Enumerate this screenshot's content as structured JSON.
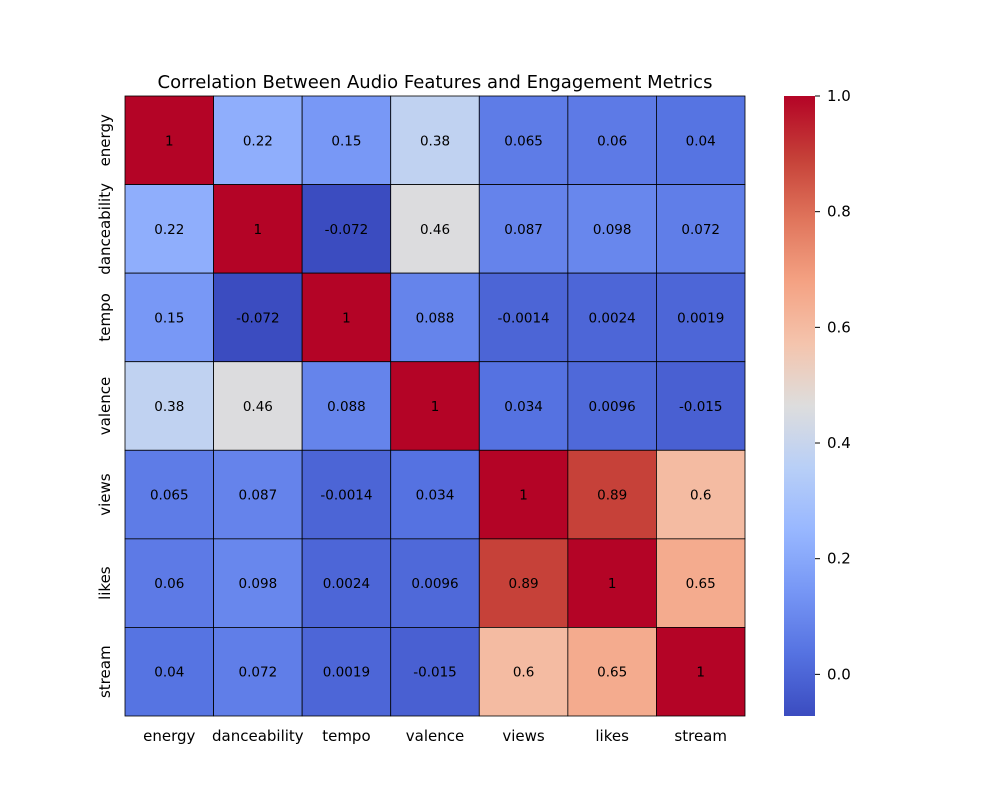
{
  "chart_data": {
    "type": "heatmap",
    "title": "Correlation Between Audio Features and Engagement Metrics",
    "x_labels": [
      "energy",
      "danceability",
      "tempo",
      "valence",
      "views",
      "likes",
      "stream"
    ],
    "y_labels": [
      "energy",
      "danceability",
      "tempo",
      "valence",
      "views",
      "likes",
      "stream"
    ],
    "values": [
      [
        1,
        0.22,
        0.15,
        0.38,
        0.065,
        0.06,
        0.04
      ],
      [
        0.22,
        1,
        -0.072,
        0.46,
        0.087,
        0.098,
        0.072
      ],
      [
        0.15,
        -0.072,
        1,
        0.088,
        -0.0014,
        0.0024,
        0.0019
      ],
      [
        0.38,
        0.46,
        0.088,
        1,
        0.034,
        0.0096,
        -0.015
      ],
      [
        0.065,
        0.087,
        -0.0014,
        0.034,
        1,
        0.89,
        0.6
      ],
      [
        0.06,
        0.098,
        0.0024,
        0.0096,
        0.89,
        1,
        0.65
      ],
      [
        0.04,
        0.072,
        0.0019,
        -0.015,
        0.6,
        0.65,
        1
      ]
    ],
    "colormap": "coolwarm",
    "vmin": -0.072,
    "vmax": 1.0,
    "colorbar_ticks": [
      "0.0",
      "0.2",
      "0.4",
      "0.6",
      "0.8",
      "1.0"
    ],
    "annotations": true,
    "cell_border_color": "#000000"
  }
}
